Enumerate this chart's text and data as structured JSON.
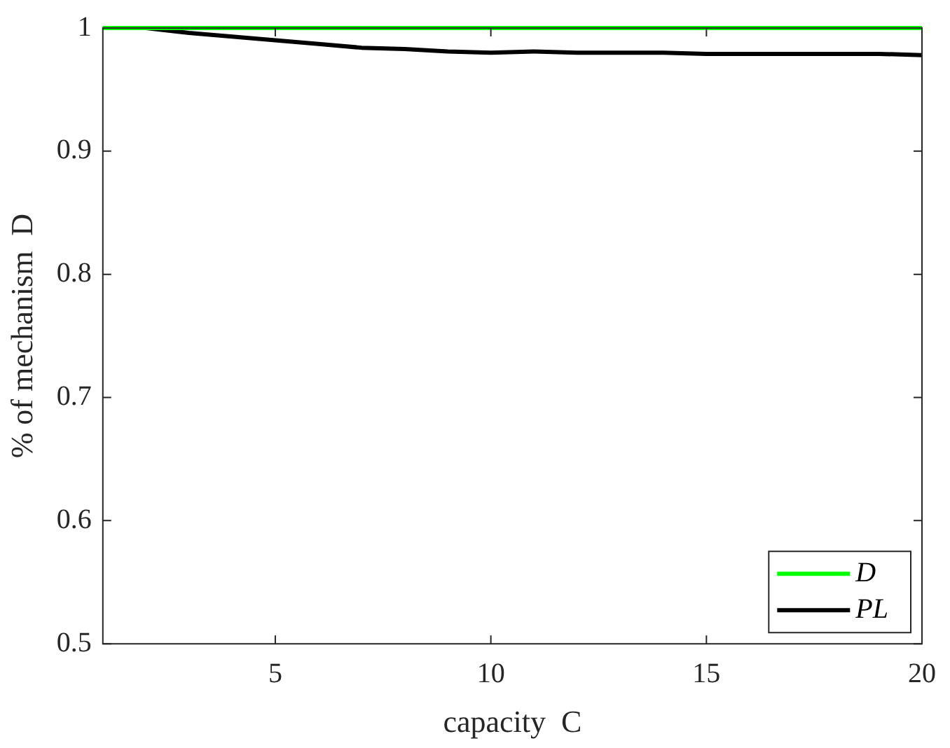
{
  "chart_data": {
    "type": "line",
    "xlabel": "capacity  C",
    "ylabel": "% of mechanism  D",
    "x": [
      1,
      2,
      3,
      4,
      5,
      6,
      7,
      8,
      9,
      10,
      11,
      12,
      13,
      14,
      15,
      16,
      17,
      18,
      19,
      20
    ],
    "series": [
      {
        "name": "D",
        "color": "#00ff00",
        "values": [
          1,
          1,
          1,
          1,
          1,
          1,
          1,
          1,
          1,
          1,
          1,
          1,
          1,
          1,
          1,
          1,
          1,
          1,
          1,
          1
        ]
      },
      {
        "name": "PL",
        "color": "#000000",
        "values": [
          1,
          1,
          0.996,
          0.993,
          0.99,
          0.987,
          0.984,
          0.983,
          0.981,
          0.98,
          0.981,
          0.98,
          0.98,
          0.98,
          0.979,
          0.979,
          0.979,
          0.979,
          0.979,
          0.978
        ]
      }
    ],
    "xlim": [
      1,
      20
    ],
    "xticks": [
      5,
      10,
      15,
      20
    ],
    "ylim": [
      0.5,
      1.0
    ],
    "yticks": [
      0.5,
      0.6,
      0.7,
      0.8,
      0.9,
      1
    ],
    "grid": false,
    "legend": "bottom right",
    "marker": "none",
    "line_style": "solid"
  }
}
